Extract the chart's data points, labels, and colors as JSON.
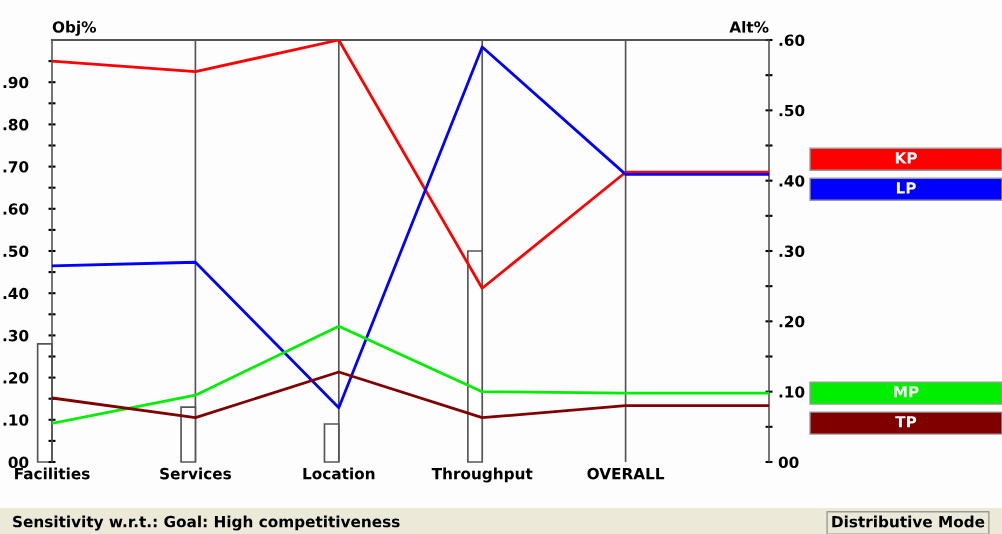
{
  "chart_data": {
    "type": "line",
    "categories": [
      "Facilities",
      "Services",
      "Location",
      "Throughput",
      "OVERALL",
      null
    ],
    "ylabel": "Obj%",
    "y2label": "Alt%",
    "ylim": [
      0,
      1.0
    ],
    "yticks": [
      {
        "value": 0,
        "label": "00"
      },
      {
        "value": 0.05,
        "label": null
      },
      {
        "value": 0.1,
        "label": ".10"
      },
      {
        "value": 0.15,
        "label": null
      },
      {
        "value": 0.2,
        "label": ".20"
      },
      {
        "value": 0.25,
        "label": null
      },
      {
        "value": 0.3,
        "label": ".30"
      },
      {
        "value": 0.35,
        "label": null
      },
      {
        "value": 0.4,
        "label": ".40"
      },
      {
        "value": 0.45,
        "label": null
      },
      {
        "value": 0.5,
        "label": ".50"
      },
      {
        "value": 0.55,
        "label": null
      },
      {
        "value": 0.6,
        "label": ".60"
      },
      {
        "value": 0.65,
        "label": null
      },
      {
        "value": 0.7,
        "label": ".70"
      },
      {
        "value": 0.75,
        "label": null
      },
      {
        "value": 0.8,
        "label": ".80"
      },
      {
        "value": 0.85,
        "label": null
      },
      {
        "value": 0.9,
        "label": ".90"
      },
      {
        "value": 0.95,
        "label": null
      }
    ],
    "y2lim": [
      0,
      0.6
    ],
    "y2ticks": [
      {
        "value": 0,
        "label": "00"
      },
      {
        "value": 0.05,
        "label": null
      },
      {
        "value": 0.1,
        "label": ".10"
      },
      {
        "value": 0.15,
        "label": null
      },
      {
        "value": 0.2,
        "label": ".20"
      },
      {
        "value": 0.25,
        "label": null
      },
      {
        "value": 0.3,
        "label": ".30"
      },
      {
        "value": 0.35,
        "label": null
      },
      {
        "value": 0.4,
        "label": ".40"
      },
      {
        "value": 0.45,
        "label": null
      },
      {
        "value": 0.5,
        "label": ".50"
      },
      {
        "value": 0.55,
        "label": null
      },
      {
        "value": 0.6,
        "label": ".60"
      }
    ],
    "series": [
      {
        "type": "bar",
        "axis": "y",
        "color": "#ffffff",
        "values": [
          0.28,
          0.13,
          0.09,
          0.5,
          null,
          null
        ]
      },
      {
        "name": "KP",
        "axis": "y2",
        "color": "#ff0000",
        "values": [
          0.57,
          0.555,
          0.6,
          0.247,
          0.412,
          0.412
        ]
      },
      {
        "name": "LP",
        "axis": "y2",
        "color": "#0000ff",
        "values": [
          0.279,
          0.284,
          0.077,
          0.59,
          0.409,
          0.409
        ]
      },
      {
        "name": "MP",
        "axis": "y2",
        "color": "#00ee00",
        "values": [
          0.055,
          0.095,
          0.193,
          0.1,
          0.098,
          0.098
        ]
      },
      {
        "name": "TP",
        "axis": "y2",
        "color": "#800000",
        "values": [
          0.091,
          0.063,
          0.128,
          0.063,
          0.08,
          0.08
        ]
      }
    ],
    "grid": "x",
    "legend": "right",
    "annotations": [
      "Sensitivity w.r.t.: Goal: High competitiveness",
      "Distributive Mode"
    ]
  }
}
